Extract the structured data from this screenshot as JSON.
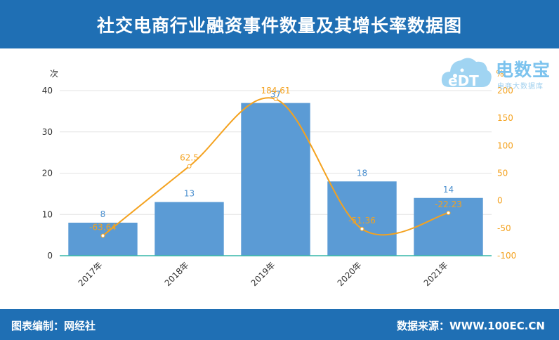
{
  "header": {
    "title": "社交电商行业融资事件数量及其增长率数据图"
  },
  "footer": {
    "left": "图表编制：网经社",
    "right": "数据来源：WWW.100EC.CN"
  },
  "logo": {
    "brand": "电数宝",
    "subtitle": "电商大数据库",
    "mark": "eDT"
  },
  "colors": {
    "header_bg": "#1f6fb4",
    "bar": "#5b9bd5",
    "line": "#f4a21f",
    "bar_label": "#4a8fcf",
    "line_label": "#f4a21f"
  },
  "chart_data": {
    "type": "bar",
    "categories": [
      "2017年",
      "2018年",
      "2019年",
      "2020年",
      "2021年"
    ],
    "series": [
      {
        "name": "",
        "type": "bar",
        "axis": "left",
        "values": [
          8,
          13,
          37,
          18,
          14
        ],
        "labels": [
          "8",
          "13",
          "37",
          "18",
          "14"
        ]
      },
      {
        "name": "",
        "type": "line",
        "axis": "right",
        "values": [
          -63.64,
          62.5,
          184.61,
          -51.36,
          -22.23
        ],
        "labels": [
          "-63.64",
          "62.5",
          "184.61",
          "-51.36",
          "-22.23"
        ]
      }
    ],
    "ylabel": "次",
    "ylabel_right": "%",
    "ylim": [
      0,
      40
    ],
    "y2lim": [
      -100,
      200
    ],
    "yticks": [
      "0",
      "10",
      "20",
      "30",
      "40"
    ],
    "y2ticks": [
      "-100",
      "-50",
      "0",
      "50",
      "100",
      "150",
      "200"
    ],
    "grid": true,
    "legend": "none"
  }
}
